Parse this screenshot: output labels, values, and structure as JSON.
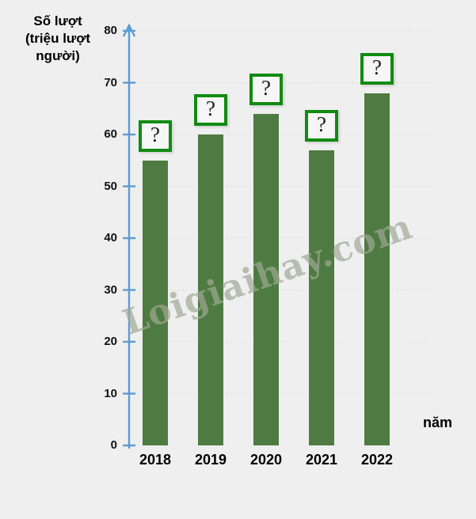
{
  "watermark": {
    "text": "Loigiaihay.com"
  },
  "chart_data": {
    "type": "bar",
    "title": "",
    "y_axis_title": "Số lượt (triệu lượt người)",
    "y_axis_title_lines": [
      "Số lượt",
      "(triệu lượt",
      "người)"
    ],
    "xlabel": "năm",
    "categories": [
      "2018",
      "2019",
      "2020",
      "2021",
      "2022"
    ],
    "values": [
      55,
      60,
      64,
      57,
      68
    ],
    "bar_annotations": [
      "?",
      "?",
      "?",
      "?",
      "?"
    ],
    "ylim": [
      0,
      80
    ],
    "yticks": [
      0,
      10,
      20,
      30,
      40,
      50,
      60,
      70,
      80
    ],
    "grid": "faint-dotted-horizontal",
    "legend": "none",
    "colors": {
      "background": "#efefef",
      "bar": "#4e7b41",
      "axis": "#5b9bd5",
      "annotation_box_border": "#118b11",
      "annotation_box_fill": "#f6f6f6",
      "text": "#000000"
    }
  }
}
